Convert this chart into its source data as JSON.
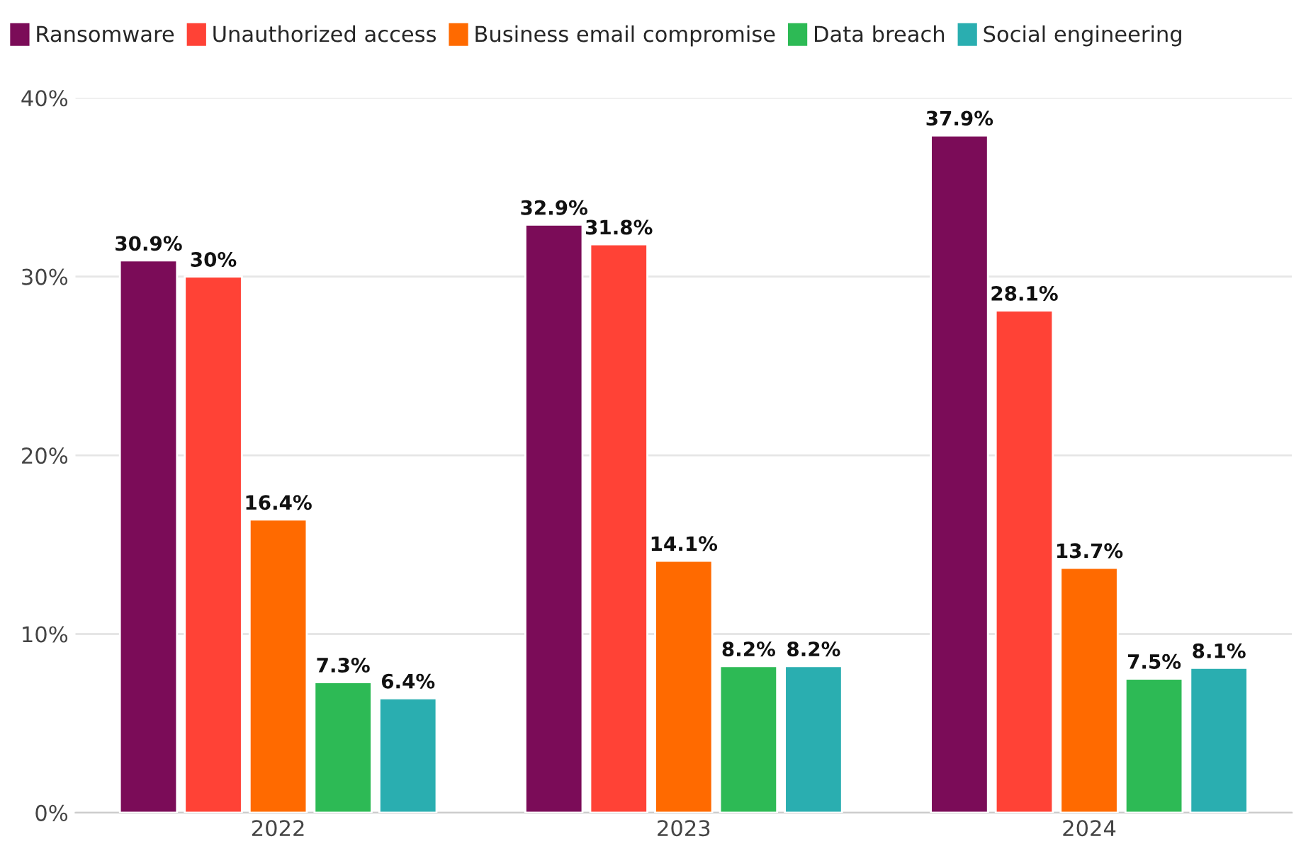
{
  "chart_data": {
    "type": "bar",
    "categories": [
      "2022",
      "2023",
      "2024"
    ],
    "series": [
      {
        "name": "Ransomware",
        "color": "#7b0c58",
        "values": [
          30.9,
          32.9,
          37.9
        ],
        "value_labels": [
          "30.9%",
          "32.9%",
          "37.9%"
        ]
      },
      {
        "name": "Unauthorized access",
        "color": "#ff4236",
        "values": [
          30,
          31.8,
          28.1
        ],
        "value_labels": [
          "30%",
          "31.8%",
          "28.1%"
        ]
      },
      {
        "name": "Business email compromise",
        "color": "#ff6a00",
        "values": [
          16.4,
          14.1,
          13.7
        ],
        "value_labels": [
          "16.4%",
          "14.1%",
          "13.7%"
        ]
      },
      {
        "name": "Data breach",
        "color": "#2dba55",
        "values": [
          7.3,
          8.2,
          7.5
        ],
        "value_labels": [
          "7.3%",
          "8.2%",
          "7.5%"
        ]
      },
      {
        "name": "Social engineering",
        "color": "#2aaeb0",
        "values": [
          6.4,
          8.2,
          8.1
        ],
        "value_labels": [
          "6.4%",
          "8.2%",
          "8.1%"
        ]
      }
    ],
    "ylim": [
      0,
      40
    ],
    "yticks": [
      {
        "value": 0,
        "label": "0%"
      },
      {
        "value": 10,
        "label": "10%"
      },
      {
        "value": 20,
        "label": "20%"
      },
      {
        "value": 30,
        "label": "30%"
      },
      {
        "value": 40,
        "label": "40%"
      }
    ],
    "grid": "y",
    "legend": "top left"
  }
}
